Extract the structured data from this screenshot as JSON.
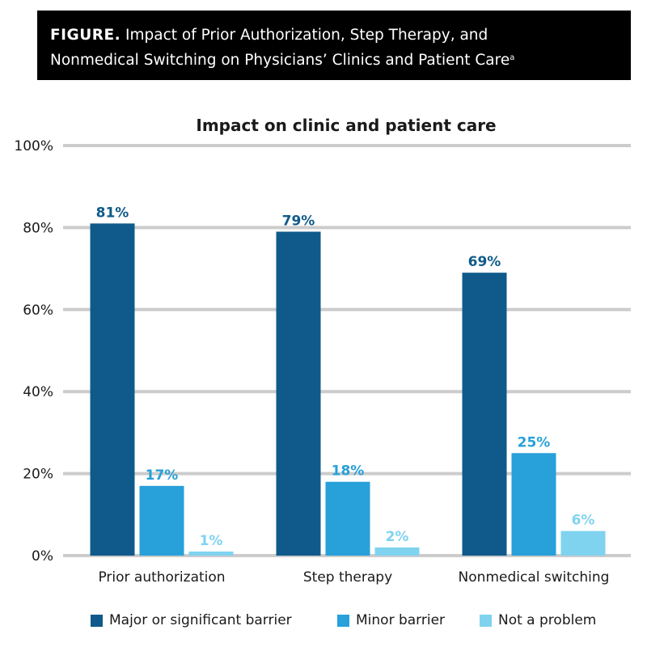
{
  "header": {
    "label": "FIGURE.",
    "title_line1": "Impact of Prior Authorization, Step Therapy, and",
    "title_line2": "Nonmedical Switching on Physicians’ Clinics and Patient Care",
    "superscript": "a"
  },
  "chart_data": {
    "type": "bar",
    "title": "Impact on clinic and patient care",
    "xlabel": "",
    "ylabel": "",
    "categories": [
      "Prior authorization",
      "Step therapy",
      "Nonmedical switching"
    ],
    "series": [
      {
        "name": "Major or significant barrier",
        "values": [
          81,
          79,
          69
        ],
        "color": "#0f5a8a"
      },
      {
        "name": "Minor barrier",
        "values": [
          17,
          18,
          25
        ],
        "color": "#28a0d9"
      },
      {
        "name": "Not a problem",
        "values": [
          1,
          2,
          6
        ],
        "color": "#7fd3ef"
      }
    ],
    "value_suffix": "%",
    "ylim": [
      0,
      100
    ],
    "yticks": [
      0,
      20,
      40,
      60,
      80,
      100
    ],
    "grid": true,
    "legend": "bottom"
  }
}
